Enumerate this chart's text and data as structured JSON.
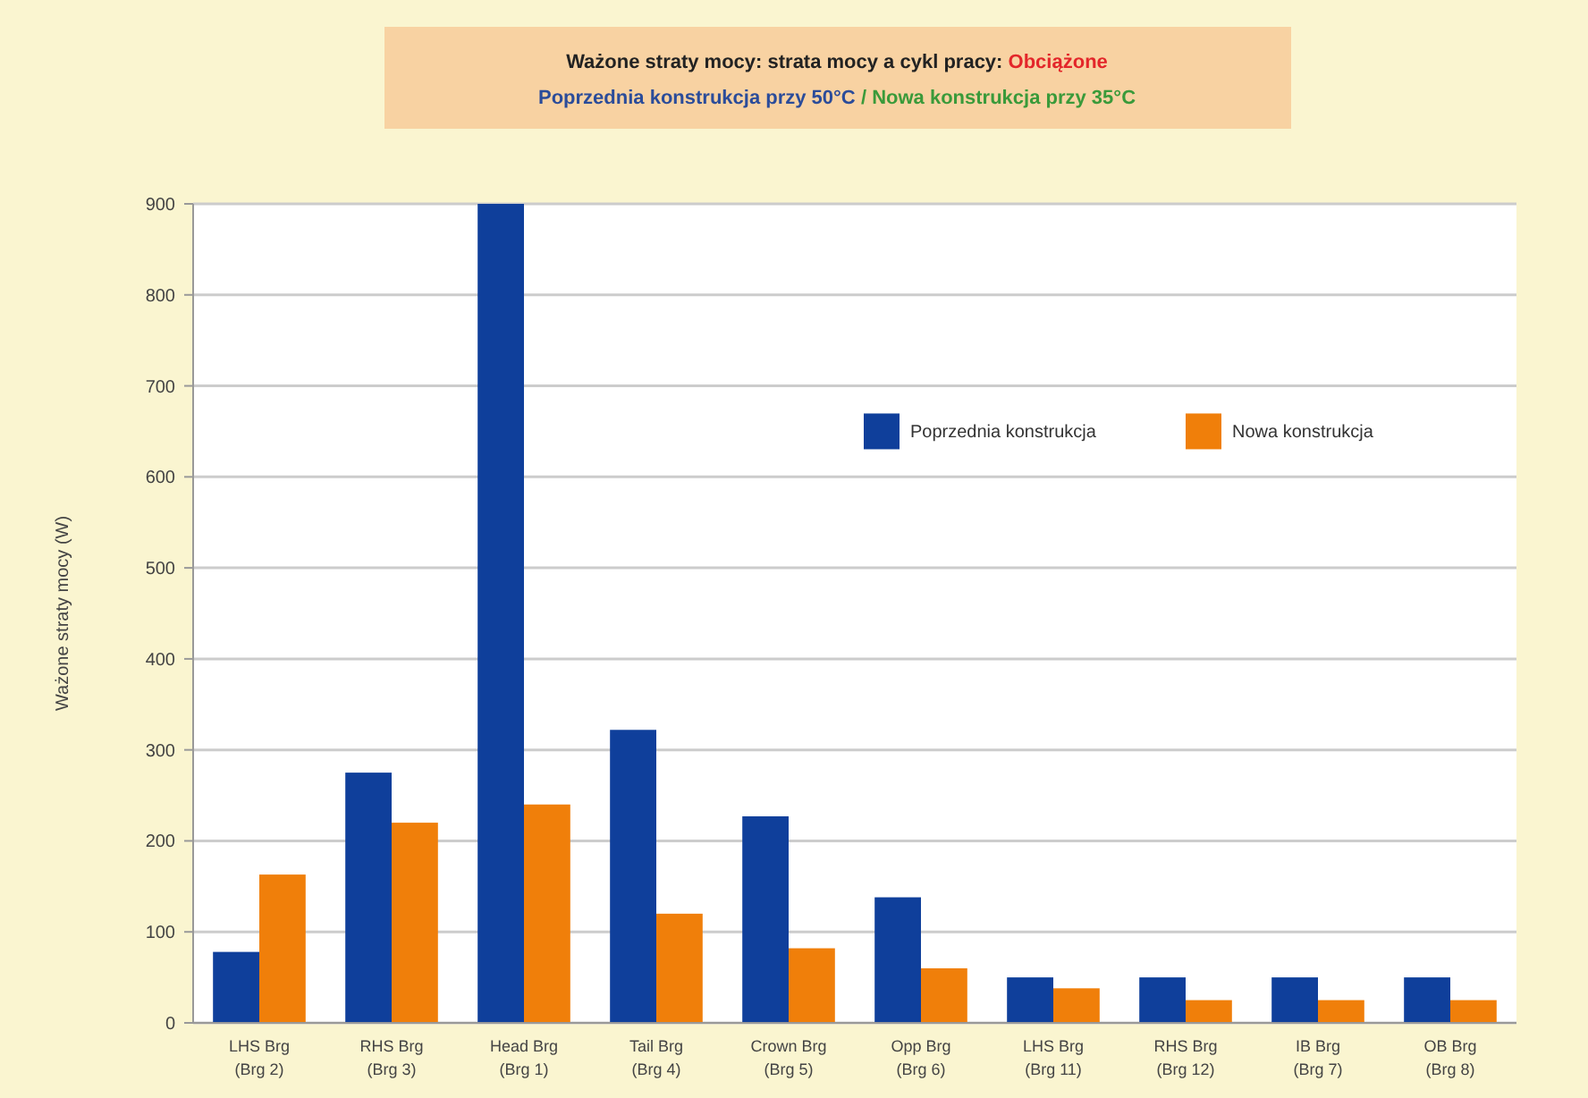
{
  "chart_data": {
    "type": "bar",
    "title": "Ważone straty mocy: strata mocy a cykl pracy: Obciążone",
    "subtitle": "Poprzednia konstrukcja przy 50°C / Nowa konstrukcja przy 35°C",
    "ylabel": "Ważone straty mocy (W)",
    "categories": [
      "LHS Brg\n(Brg 2)",
      "RHS Brg\n(Brg 3)",
      "Head Brg\n(Brg 1)",
      "Tail Brg\n(Brg 4)",
      "Crown Brg\n(Brg 5)",
      "Opp Brg\n(Brg 6)",
      "LHS Brg\n(Brg 11)",
      "RHS Brg\n(Brg 12)",
      "IB Brg\n(Brg 7)",
      "OB Brg\n(Brg 8)"
    ],
    "series": [
      {
        "name": "Poprzednia konstrukcja",
        "color": "#0f3f9b",
        "values": [
          78,
          275,
          900,
          322,
          227,
          138,
          50,
          50,
          50,
          50
        ]
      },
      {
        "name": "Nowa konstrukcja",
        "color": "#f07f0a",
        "values": [
          163,
          220,
          240,
          120,
          82,
          60,
          38,
          25,
          25,
          25
        ]
      }
    ],
    "ylim": [
      0,
      900
    ],
    "yticks": [
      0,
      100,
      200,
      300,
      400,
      500,
      600,
      700,
      800,
      900
    ],
    "grid": "y",
    "legend": "top right"
  }
}
